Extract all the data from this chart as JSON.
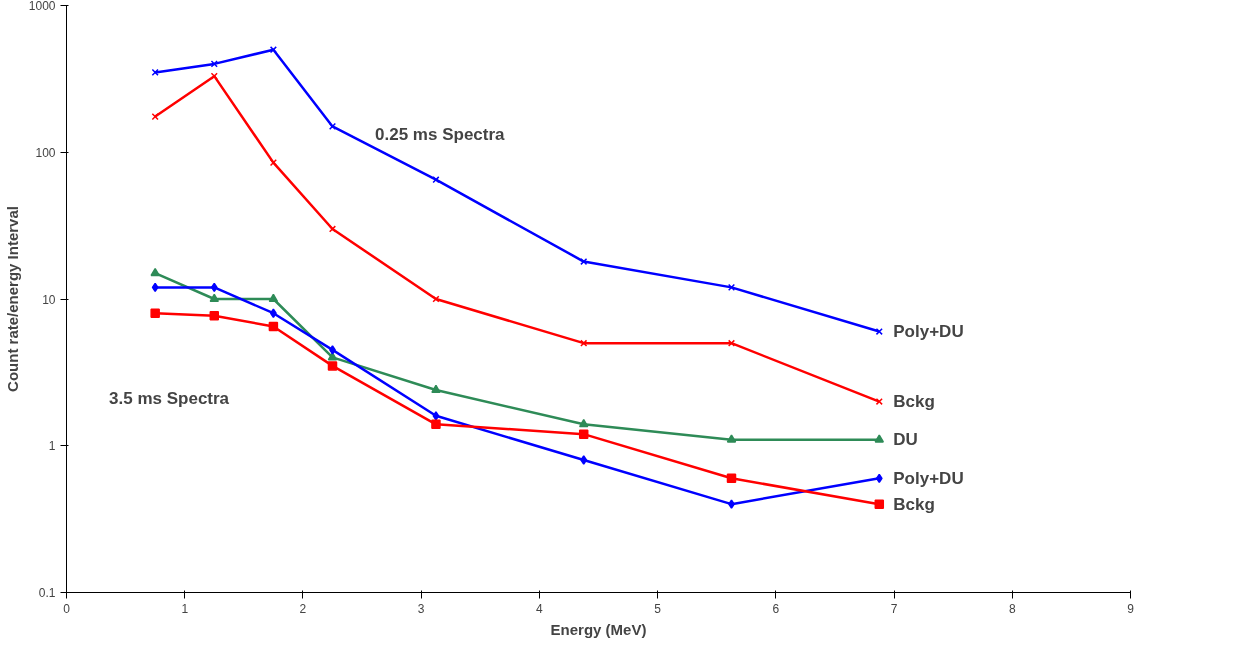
{
  "chart_data": {
    "type": "line",
    "xlabel": "Energy (MeV)",
    "ylabel": "Count rate/energy Interval",
    "x": [
      0.75,
      1.25,
      1.75,
      2.25,
      3.125,
      4.375,
      5.625,
      6.875
    ],
    "series": [
      {
        "name": "Poly+DU",
        "color": "#0000ff",
        "marker": "cross",
        "values": [
          350,
          400,
          500,
          150,
          65,
          18,
          12,
          6
        ]
      },
      {
        "name": "Bckg",
        "color": "#ff0000",
        "marker": "cross",
        "values": [
          175,
          330,
          85,
          30,
          10,
          5,
          5,
          2
        ]
      },
      {
        "name": "DU",
        "color": "#2e8b57",
        "marker": "triangle",
        "values": [
          15,
          10,
          10,
          4,
          2.4,
          1.4,
          1.1,
          1.1
        ]
      },
      {
        "name": "Poly+DU",
        "color": "#0000ff",
        "marker": "diamond",
        "values": [
          12,
          12,
          8,
          4.5,
          1.6,
          0.8,
          0.4,
          0.6
        ]
      },
      {
        "name": "Bckg",
        "color": "#ff0000",
        "marker": "square",
        "values": [
          8,
          7.7,
          6.5,
          3.5,
          1.4,
          1.2,
          0.6,
          0.4
        ]
      }
    ],
    "annotations": [
      "0.25 ms Spectra",
      "3.5 ms Spectra"
    ],
    "log": "y",
    "grid": false,
    "xlim": [
      0,
      9
    ],
    "xticks": [
      0,
      1,
      2,
      3,
      4,
      5,
      6,
      7,
      8,
      9
    ],
    "ylim": [
      0.1,
      1000
    ],
    "yticks": [
      0.1,
      1,
      10,
      100,
      1000
    ]
  }
}
